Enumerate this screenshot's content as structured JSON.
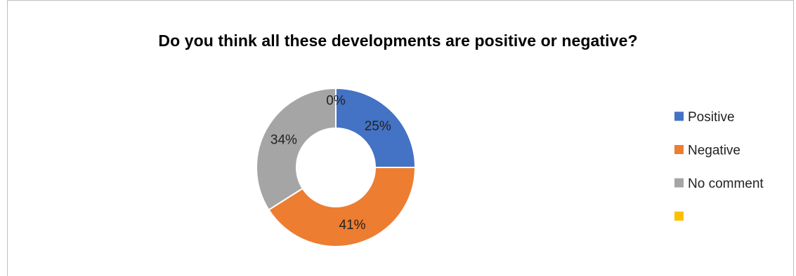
{
  "chart_data": {
    "type": "pie",
    "variant": "doughnut",
    "title": "Do you think all these developments are positive or negative?",
    "categories": [
      "Positive",
      "Negative",
      "No comment",
      ""
    ],
    "values": [
      25,
      41,
      34,
      0
    ],
    "labels": [
      "25%",
      "41%",
      "34%",
      "0%"
    ],
    "colors": [
      "#4472c4",
      "#ed7d31",
      "#a5a5a5",
      "#ffc000"
    ],
    "legend_position": "right"
  }
}
